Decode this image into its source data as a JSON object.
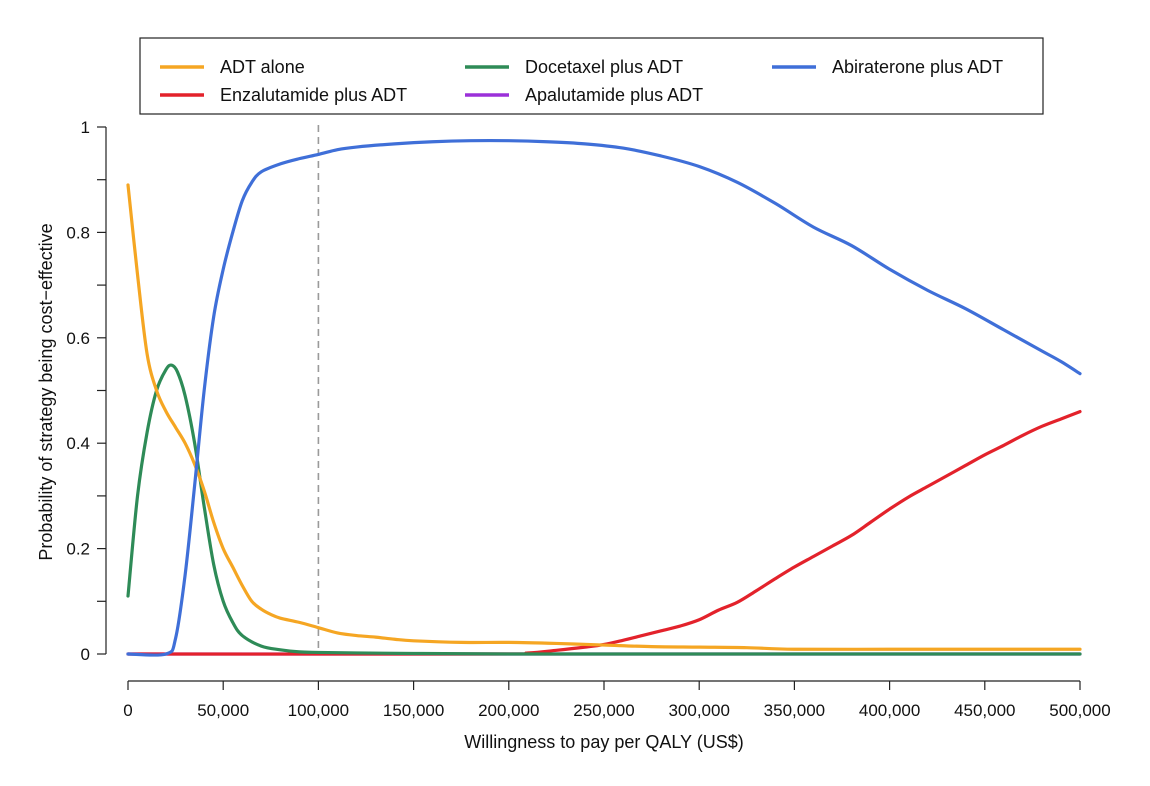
{
  "chart_data": {
    "type": "line",
    "xlabel": "Willingness to pay per QALY (US$)",
    "ylabel": "Probability of strategy being cost−effective",
    "xlim": [
      0,
      500000
    ],
    "ylim": [
      0,
      1
    ],
    "x_ticks": [
      0,
      50000,
      100000,
      150000,
      200000,
      250000,
      300000,
      350000,
      400000,
      450000,
      500000
    ],
    "x_tick_labels": [
      "0",
      "50,000",
      "100,000",
      "150,000",
      "200,000",
      "250,000",
      "300,000",
      "350,000",
      "400,000",
      "450,000",
      "500,000"
    ],
    "y_ticks": [
      0,
      0.2,
      0.4,
      0.6,
      0.8,
      1
    ],
    "y_tick_labels": [
      "0",
      "0.2",
      "0.4",
      "0.6",
      "0.8",
      "1"
    ],
    "y_minor_ticks": [
      0.1,
      0.3,
      0.5,
      0.7,
      0.9
    ],
    "reference_line_x": 100000,
    "grid": false,
    "legend_position": "top",
    "series": [
      {
        "name": "ADT alone",
        "color": "#F5A623",
        "points": [
          [
            0,
            0.89
          ],
          [
            5000,
            0.72
          ],
          [
            10000,
            0.57
          ],
          [
            15000,
            0.5
          ],
          [
            20000,
            0.46
          ],
          [
            25000,
            0.43
          ],
          [
            30000,
            0.4
          ],
          [
            35000,
            0.36
          ],
          [
            40000,
            0.31
          ],
          [
            45000,
            0.25
          ],
          [
            50000,
            0.2
          ],
          [
            55000,
            0.165
          ],
          [
            60000,
            0.13
          ],
          [
            65000,
            0.1
          ],
          [
            70000,
            0.085
          ],
          [
            75000,
            0.075
          ],
          [
            80000,
            0.068
          ],
          [
            90000,
            0.06
          ],
          [
            100000,
            0.05
          ],
          [
            110000,
            0.04
          ],
          [
            120000,
            0.035
          ],
          [
            130000,
            0.032
          ],
          [
            140000,
            0.028
          ],
          [
            150000,
            0.025
          ],
          [
            175000,
            0.022
          ],
          [
            200000,
            0.022
          ],
          [
            225000,
            0.02
          ],
          [
            250000,
            0.017
          ],
          [
            275000,
            0.014
          ],
          [
            300000,
            0.013
          ],
          [
            325000,
            0.012
          ],
          [
            350000,
            0.009
          ],
          [
            400000,
            0.009
          ],
          [
            450000,
            0.009
          ],
          [
            500000,
            0.009
          ]
        ]
      },
      {
        "name": "Enzalutamide plus ADT",
        "color": "#E3222B",
        "points": [
          [
            0,
            0
          ],
          [
            190000,
            0
          ],
          [
            210000,
            0.002
          ],
          [
            225000,
            0.007
          ],
          [
            240000,
            0.013
          ],
          [
            250000,
            0.018
          ],
          [
            260000,
            0.026
          ],
          [
            270000,
            0.035
          ],
          [
            280000,
            0.044
          ],
          [
            290000,
            0.053
          ],
          [
            300000,
            0.065
          ],
          [
            310000,
            0.083
          ],
          [
            320000,
            0.098
          ],
          [
            330000,
            0.12
          ],
          [
            340000,
            0.143
          ],
          [
            350000,
            0.165
          ],
          [
            360000,
            0.185
          ],
          [
            370000,
            0.205
          ],
          [
            380000,
            0.225
          ],
          [
            390000,
            0.25
          ],
          [
            400000,
            0.275
          ],
          [
            410000,
            0.298
          ],
          [
            420000,
            0.318
          ],
          [
            430000,
            0.338
          ],
          [
            440000,
            0.358
          ],
          [
            450000,
            0.378
          ],
          [
            460000,
            0.396
          ],
          [
            470000,
            0.415
          ],
          [
            480000,
            0.432
          ],
          [
            490000,
            0.446
          ],
          [
            500000,
            0.46
          ]
        ]
      },
      {
        "name": "Docetaxel plus ADT",
        "color": "#2E8B57",
        "points": [
          [
            0,
            0.11
          ],
          [
            5000,
            0.3
          ],
          [
            10000,
            0.42
          ],
          [
            15000,
            0.5
          ],
          [
            20000,
            0.54
          ],
          [
            23000,
            0.548
          ],
          [
            26000,
            0.535
          ],
          [
            30000,
            0.49
          ],
          [
            35000,
            0.4
          ],
          [
            40000,
            0.28
          ],
          [
            45000,
            0.17
          ],
          [
            50000,
            0.1
          ],
          [
            55000,
            0.06
          ],
          [
            60000,
            0.035
          ],
          [
            70000,
            0.015
          ],
          [
            80000,
            0.008
          ],
          [
            90000,
            0.004
          ],
          [
            100000,
            0.003
          ],
          [
            120000,
            0.002
          ],
          [
            150000,
            0.001
          ],
          [
            200000,
            0
          ],
          [
            300000,
            0
          ],
          [
            400000,
            0
          ],
          [
            500000,
            0
          ]
        ]
      },
      {
        "name": "Apalutamide plus ADT",
        "color": "#9B30D9",
        "points": [
          [
            0,
            0
          ],
          [
            500000,
            0
          ]
        ]
      },
      {
        "name": "Abiraterone plus ADT",
        "color": "#3F6FD8",
        "points": [
          [
            0,
            0
          ],
          [
            20000,
            0
          ],
          [
            25000,
            0.03
          ],
          [
            30000,
            0.15
          ],
          [
            35000,
            0.32
          ],
          [
            40000,
            0.5
          ],
          [
            45000,
            0.64
          ],
          [
            50000,
            0.73
          ],
          [
            55000,
            0.8
          ],
          [
            60000,
            0.86
          ],
          [
            65000,
            0.895
          ],
          [
            70000,
            0.915
          ],
          [
            80000,
            0.93
          ],
          [
            90000,
            0.94
          ],
          [
            100000,
            0.948
          ],
          [
            110000,
            0.957
          ],
          [
            120000,
            0.962
          ],
          [
            140000,
            0.968
          ],
          [
            160000,
            0.972
          ],
          [
            180000,
            0.974
          ],
          [
            200000,
            0.974
          ],
          [
            220000,
            0.972
          ],
          [
            240000,
            0.968
          ],
          [
            260000,
            0.96
          ],
          [
            280000,
            0.945
          ],
          [
            300000,
            0.925
          ],
          [
            320000,
            0.895
          ],
          [
            340000,
            0.855
          ],
          [
            360000,
            0.81
          ],
          [
            380000,
            0.775
          ],
          [
            400000,
            0.73
          ],
          [
            420000,
            0.69
          ],
          [
            440000,
            0.655
          ],
          [
            460000,
            0.615
          ],
          [
            480000,
            0.575
          ],
          [
            490000,
            0.555
          ],
          [
            500000,
            0.532
          ]
        ]
      }
    ]
  }
}
